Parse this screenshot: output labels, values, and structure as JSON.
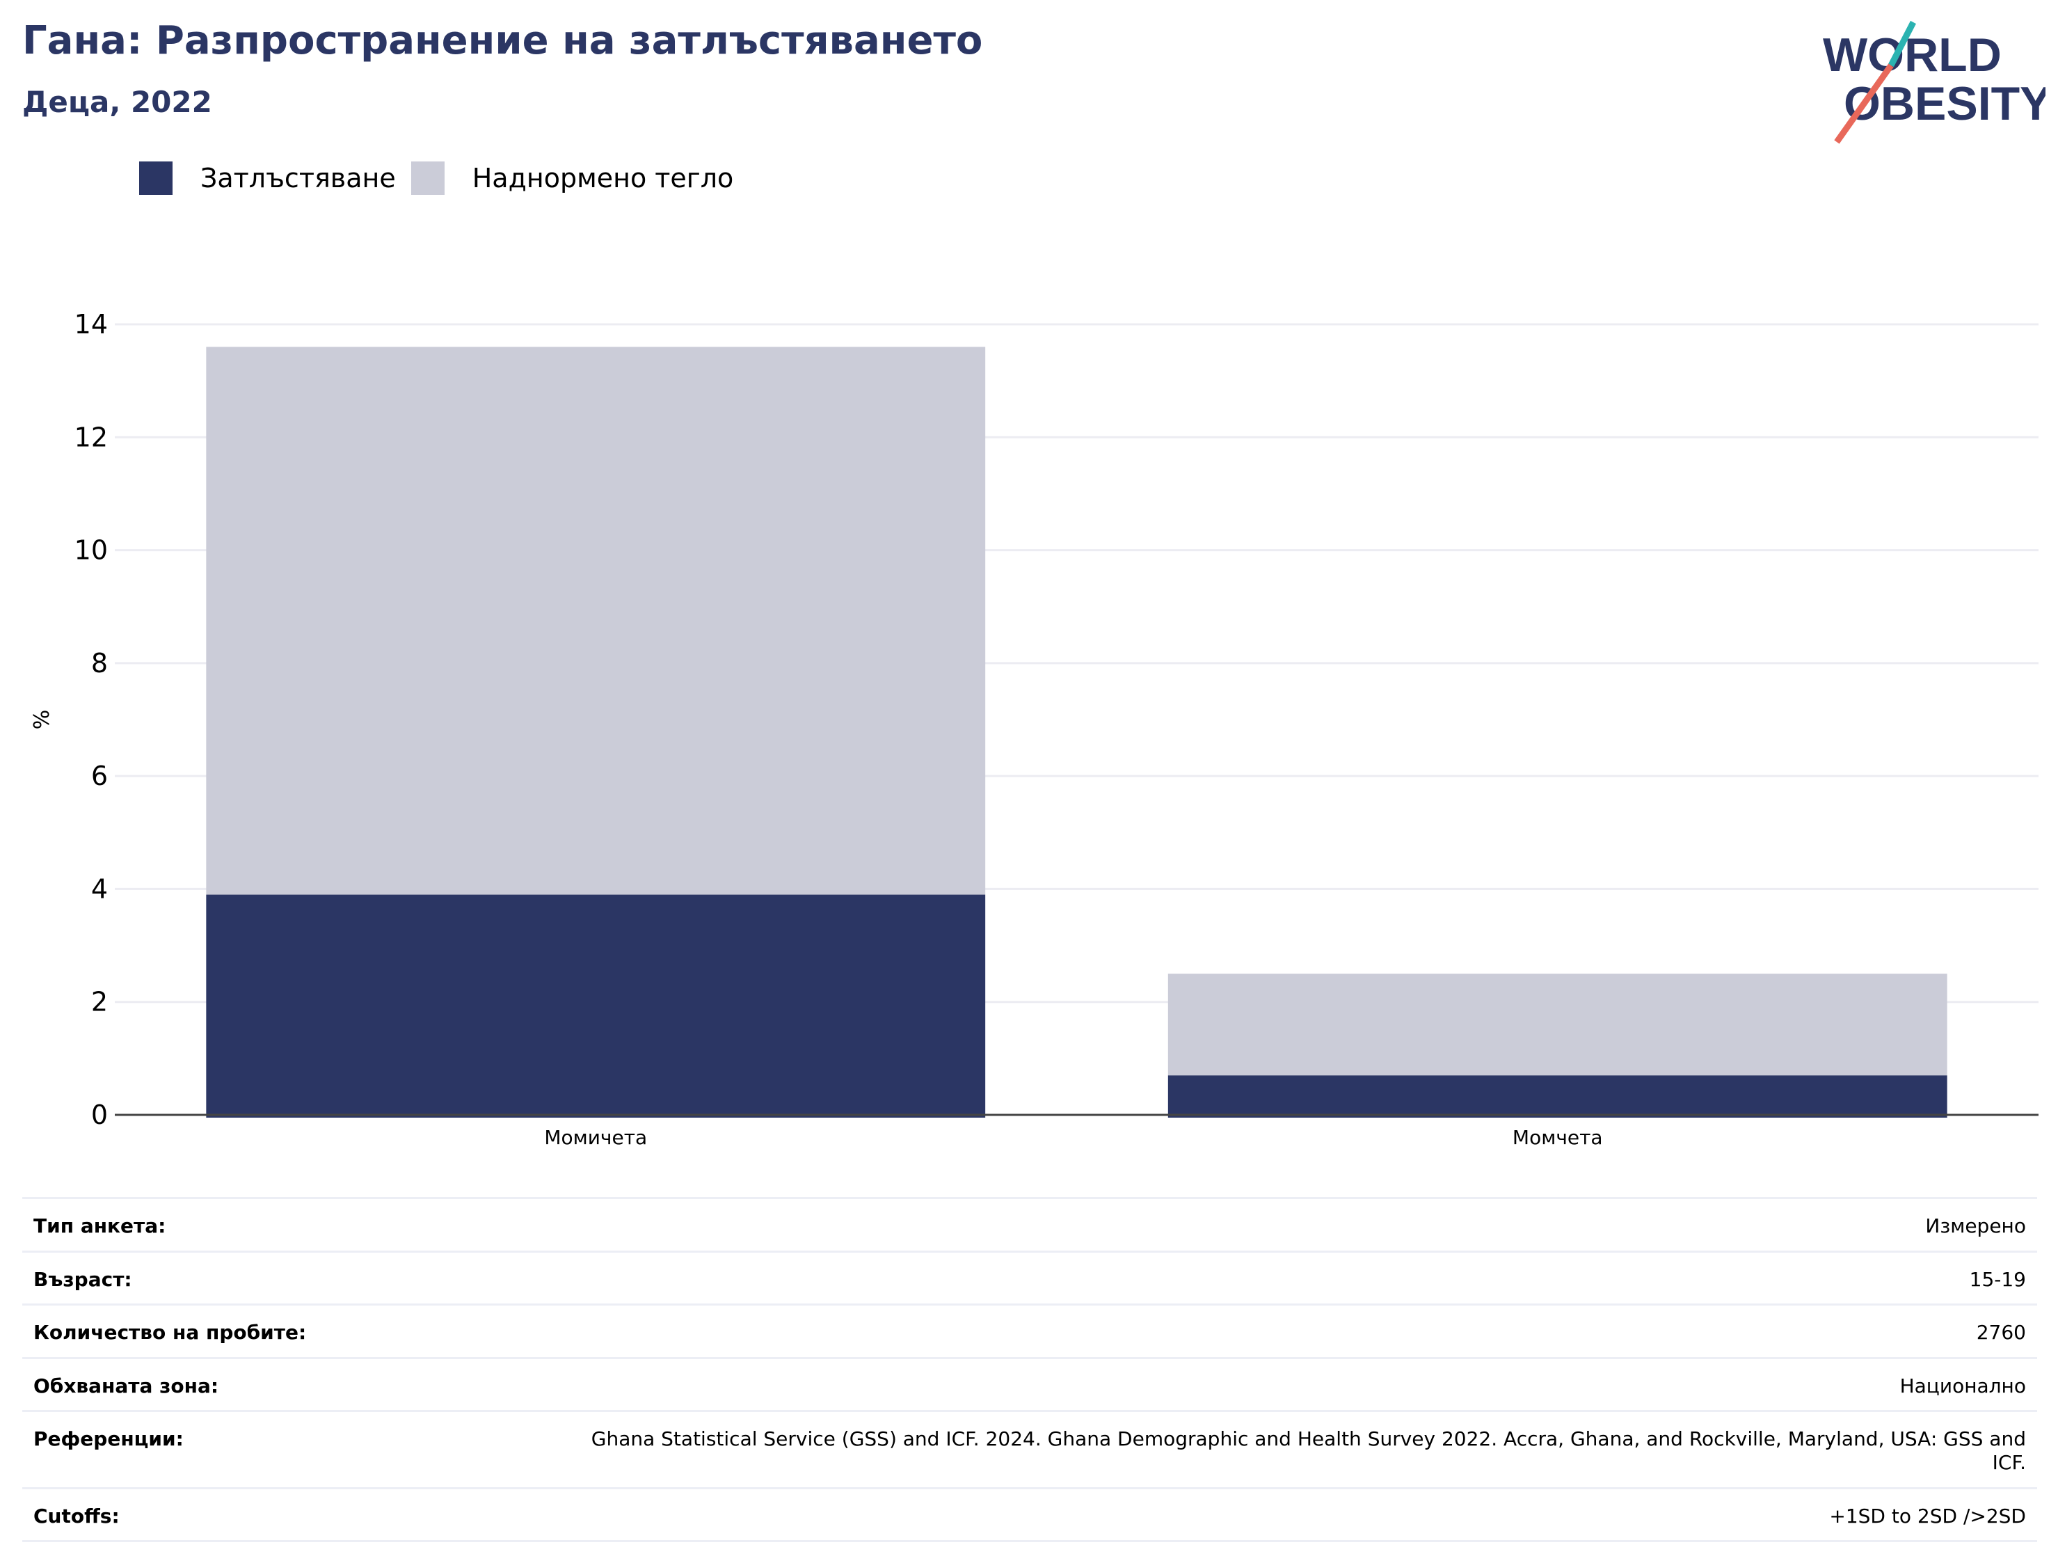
{
  "header": {
    "title": "Гана: Разпространение на затлъстяването",
    "subtitle": "Деца, 2022"
  },
  "logo": {
    "line1": "WORLD",
    "line2": "OBESITY"
  },
  "colors": {
    "obesity": "#2b3664",
    "overweight": "#cbccd8",
    "title": "#2b3664",
    "logo_teal": "#2bb3b1",
    "logo_coral": "#e8685a"
  },
  "chart_data": {
    "type": "bar",
    "stacked": true,
    "categories": [
      "Момичета",
      "Момчета"
    ],
    "series": [
      {
        "name": "Затлъстяване",
        "values": [
          3.9,
          0.7
        ]
      },
      {
        "name": "Наднормено тегло",
        "values": [
          9.7,
          1.8
        ]
      }
    ],
    "ylabel": "%",
    "ylim": [
      0,
      14
    ],
    "yticks": [
      0,
      2,
      4,
      6,
      8,
      10,
      12,
      14
    ],
    "grid": true,
    "legend": "top-left"
  },
  "meta": [
    {
      "label": "Тип анкета:",
      "value": "Измерено"
    },
    {
      "label": "Възраст:",
      "value": "15-19"
    },
    {
      "label": "Количество на пробите:",
      "value": "2760"
    },
    {
      "label": "Обхваната зона:",
      "value": "Национално"
    },
    {
      "label": "Референции:",
      "value": "Ghana Statistical Service (GSS) and ICF. 2024. Ghana Demographic and Health Survey 2022. Accra, Ghana, and Rockville, Maryland, USA: GSS and ICF."
    },
    {
      "label": "Cutoffs:",
      "value": "+1SD to 2SD />2SD"
    }
  ]
}
